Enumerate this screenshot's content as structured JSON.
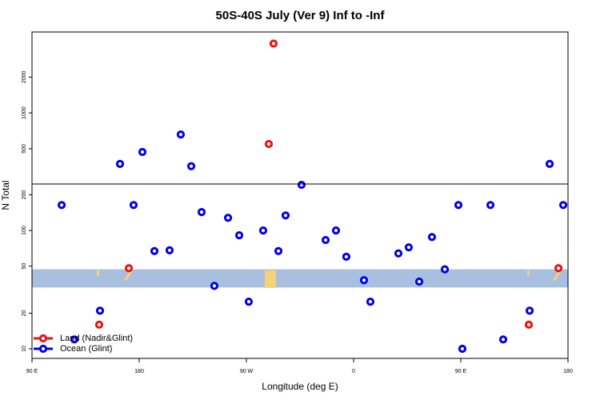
{
  "chart_data": {
    "type": "scatter",
    "title": "50S-40S July (Ver 9)   Inf to -Inf",
    "x_label": "Longitude (deg E)",
    "y_label": "N Total",
    "xlim": [
      90,
      540
    ],
    "xticks": [
      {
        "value": 90,
        "label": "90 E"
      },
      180,
      {
        "value": 270,
        "label": "90 W"
      },
      {
        "value": 360,
        "label": "0"
      },
      {
        "value": 450,
        "label": "90 E"
      },
      {
        "value": 540,
        "label": "180"
      }
    ],
    "log_scale": true,
    "panels": [
      {
        "ylim": [
          8.3,
          247
        ],
        "yticks": [
          10,
          20,
          50,
          100,
          200
        ]
      },
      {
        "ylim": [
          253,
          4780
        ],
        "yticks": [
          500,
          1000,
          2000
        ]
      }
    ],
    "band": {
      "range": [
        33,
        47
      ],
      "color": "#a8bfdf"
    },
    "legend": "bottom-left",
    "series": [
      {
        "name": "Land (Nadir&Glint)",
        "color": "#ee1111",
        "x": [
          146.4,
          171.3,
          292.8,
          288.8,
          507.1,
          532
        ],
        "values": [
          16,
          48,
          3818,
          548,
          16,
          48
        ]
      },
      {
        "name": "Ocean (Glint)",
        "color": "#0000ee",
        "x": [
          114.9,
          125.6,
          147.1,
          163.9,
          175.3,
          182.7,
          192.8,
          205.5,
          214.9,
          223.7,
          232.4,
          243.1,
          254.6,
          264,
          272,
          284.1,
          296.9,
          302.9,
          316.3,
          336.5,
          345.2,
          353.9,
          368.7,
          374.1,
          397.6,
          406.3,
          415.1,
          425.8,
          436.6,
          448,
          451.3,
          474.9,
          485.6,
          507.8,
          524.6,
          536
        ],
        "values": [
          164,
          12,
          21,
          373,
          164,
          470,
          67,
          68,
          659,
          357,
          143,
          34,
          128,
          91,
          25,
          100,
          67,
          134,
          243,
          83,
          100,
          60,
          38,
          25,
          64,
          72,
          37,
          88,
          47,
          164,
          10,
          164,
          12,
          21,
          373,
          164
        ]
      }
    ]
  }
}
